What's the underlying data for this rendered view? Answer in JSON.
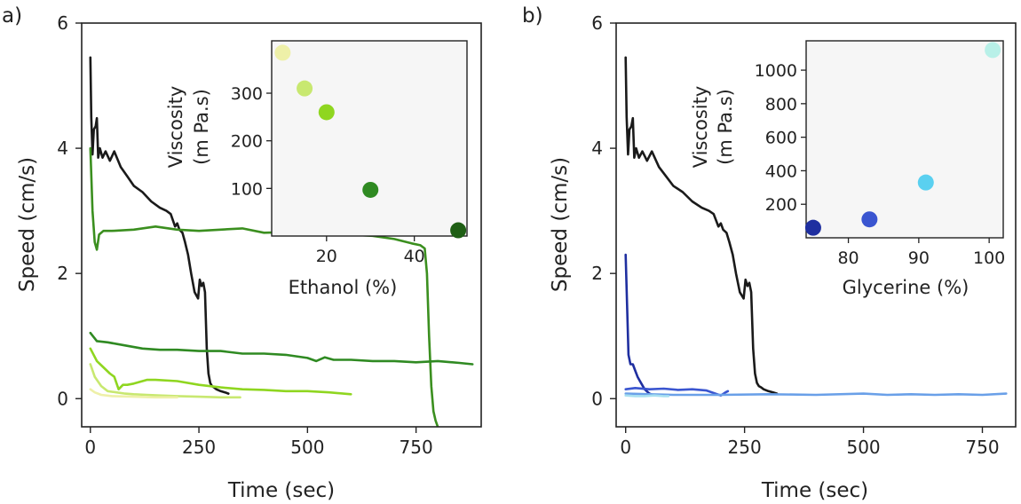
{
  "chart_data": [
    {
      "panel": "a)",
      "type": "line",
      "xlabel": "Time (sec)",
      "ylabel": "Speed (cm/s)",
      "xlim": [
        -20,
        900
      ],
      "ylim": [
        -0.45,
        6
      ],
      "xticks": [
        0,
        250,
        500,
        750
      ],
      "yticks": [
        0,
        2,
        4,
        6
      ],
      "series": [
        {
          "color": "#1a1a1a",
          "x": [
            0,
            2,
            5,
            8,
            12,
            15,
            18,
            22,
            28,
            35,
            45,
            55,
            70,
            85,
            100,
            120,
            140,
            160,
            175,
            185,
            195,
            200,
            205,
            212,
            218,
            225,
            232,
            240,
            248,
            252,
            256,
            260,
            264,
            268,
            272,
            276,
            280,
            285,
            290,
            300,
            310,
            318
          ],
          "y": [
            5.45,
            4.5,
            3.9,
            4.3,
            4.35,
            4.48,
            3.85,
            4.0,
            3.85,
            3.95,
            3.8,
            3.95,
            3.7,
            3.55,
            3.4,
            3.3,
            3.15,
            3.05,
            3.0,
            2.95,
            2.75,
            2.8,
            2.7,
            2.65,
            2.5,
            2.3,
            2.0,
            1.7,
            1.6,
            1.9,
            1.8,
            1.85,
            1.7,
            0.8,
            0.4,
            0.25,
            0.2,
            0.18,
            0.15,
            0.12,
            0.1,
            0.08
          ]
        },
        {
          "color": "#3b8f1f",
          "x": [
            0,
            5,
            10,
            15,
            20,
            30,
            50,
            100,
            150,
            200,
            250,
            300,
            350,
            400,
            450,
            500,
            550,
            600,
            650,
            700,
            740,
            760,
            770,
            775,
            780,
            785,
            790,
            795,
            800
          ],
          "y": [
            4.0,
            3.0,
            2.5,
            2.38,
            2.62,
            2.68,
            2.68,
            2.7,
            2.75,
            2.7,
            2.68,
            2.7,
            2.72,
            2.65,
            2.66,
            2.68,
            2.64,
            2.62,
            2.6,
            2.55,
            2.48,
            2.45,
            2.4,
            2.0,
            1.0,
            0.2,
            -0.2,
            -0.35,
            -0.45
          ]
        },
        {
          "color": "#2f8a22",
          "x": [
            0,
            15,
            40,
            80,
            120,
            160,
            200,
            250,
            300,
            350,
            400,
            450,
            500,
            520,
            540,
            560,
            600,
            650,
            700,
            750,
            800,
            850,
            880
          ],
          "y": [
            1.05,
            0.92,
            0.9,
            0.85,
            0.8,
            0.78,
            0.78,
            0.76,
            0.76,
            0.72,
            0.72,
            0.7,
            0.65,
            0.6,
            0.66,
            0.62,
            0.62,
            0.6,
            0.6,
            0.58,
            0.6,
            0.57,
            0.55
          ]
        },
        {
          "color": "#8fd620",
          "x": [
            0,
            15,
            30,
            45,
            55,
            65,
            75,
            85,
            100,
            130,
            150,
            200,
            250,
            300,
            350,
            400,
            450,
            500,
            550,
            600
          ],
          "y": [
            0.8,
            0.6,
            0.5,
            0.4,
            0.35,
            0.15,
            0.22,
            0.22,
            0.24,
            0.3,
            0.3,
            0.28,
            0.22,
            0.18,
            0.15,
            0.14,
            0.12,
            0.12,
            0.1,
            0.07
          ]
        },
        {
          "color": "#c8e870",
          "x": [
            0,
            10,
            25,
            40,
            60,
            80,
            100,
            130,
            160,
            200,
            250,
            300,
            345
          ],
          "y": [
            0.55,
            0.35,
            0.2,
            0.12,
            0.1,
            0.08,
            0.07,
            0.06,
            0.05,
            0.04,
            0.03,
            0.02,
            0.02
          ]
        },
        {
          "color": "#eef0a8",
          "x": [
            0,
            10,
            25,
            50,
            100,
            150,
            200
          ],
          "y": [
            0.15,
            0.1,
            0.06,
            0.04,
            0.03,
            0.02,
            0.02
          ]
        }
      ],
      "inset": {
        "xlabel": "Ethanol (%)",
        "ylabel_lines": [
          "Viscosity",
          "(m Pa.s)"
        ],
        "xlim": [
          7.5,
          52
        ],
        "ylim": [
          0,
          410
        ],
        "xticks": [
          20,
          40
        ],
        "yticks": [
          100,
          200,
          300
        ],
        "points": [
          {
            "x": 10,
            "y": 385,
            "color": "#eef0a8"
          },
          {
            "x": 15,
            "y": 310,
            "color": "#c8e870"
          },
          {
            "x": 20,
            "y": 260,
            "color": "#8fd620"
          },
          {
            "x": 30,
            "y": 97,
            "color": "#2f8a22"
          },
          {
            "x": 50,
            "y": 12,
            "color": "#1f5f15"
          }
        ]
      }
    },
    {
      "panel": "b)",
      "type": "line",
      "xlabel": "Time (sec)",
      "ylabel": "Speed (cm/s)",
      "xlim": [
        -20,
        820
      ],
      "ylim": [
        -0.45,
        6
      ],
      "xticks": [
        0,
        250,
        500,
        750
      ],
      "yticks": [
        0,
        2,
        4,
        6
      ],
      "series": [
        {
          "color": "#1a1a1a",
          "x": [
            0,
            2,
            5,
            8,
            12,
            15,
            18,
            22,
            28,
            35,
            45,
            55,
            70,
            85,
            100,
            120,
            140,
            160,
            175,
            185,
            195,
            200,
            205,
            212,
            218,
            225,
            232,
            240,
            248,
            252,
            256,
            260,
            264,
            268,
            272,
            276,
            280,
            285,
            290,
            300,
            310,
            318
          ],
          "y": [
            5.45,
            4.5,
            3.9,
            4.3,
            4.35,
            4.48,
            3.85,
            4.0,
            3.85,
            3.95,
            3.8,
            3.95,
            3.7,
            3.55,
            3.4,
            3.3,
            3.15,
            3.05,
            3.0,
            2.95,
            2.75,
            2.8,
            2.7,
            2.65,
            2.5,
            2.3,
            2.0,
            1.7,
            1.6,
            1.9,
            1.8,
            1.85,
            1.7,
            0.8,
            0.4,
            0.25,
            0.2,
            0.18,
            0.15,
            0.12,
            0.1,
            0.08
          ]
        },
        {
          "color": "#1f2fa0",
          "x": [
            0,
            3,
            6,
            10,
            15,
            20,
            25,
            30,
            40,
            50,
            60
          ],
          "y": [
            2.3,
            1.5,
            0.7,
            0.55,
            0.55,
            0.45,
            0.35,
            0.28,
            0.15,
            0.08,
            0.05
          ]
        },
        {
          "color": "#3a55d0",
          "x": [
            0,
            20,
            50,
            80,
            110,
            140,
            170,
            200,
            210,
            215
          ],
          "y": [
            0.15,
            0.17,
            0.15,
            0.16,
            0.14,
            0.15,
            0.13,
            0.05,
            0.1,
            0.12
          ]
        },
        {
          "color": "#6aa0e8",
          "x": [
            0,
            50,
            100,
            200,
            300,
            400,
            500,
            550,
            600,
            650,
            700,
            750,
            800
          ],
          "y": [
            0.08,
            0.07,
            0.06,
            0.06,
            0.07,
            0.06,
            0.08,
            0.06,
            0.07,
            0.06,
            0.07,
            0.06,
            0.08
          ]
        },
        {
          "color": "#a8e0f0",
          "x": [
            0,
            20,
            40,
            60,
            80,
            90
          ],
          "y": [
            0.05,
            0.04,
            0.04,
            0.05,
            0.04,
            0.04
          ]
        }
      ],
      "inset": {
        "xlabel": "Glycerine (%)",
        "ylabel_lines": [
          "Viscosity",
          "(m Pa.s)"
        ],
        "xlim": [
          74,
          102
        ],
        "ylim": [
          0,
          1175
        ],
        "xticks": [
          80,
          90,
          100
        ],
        "yticks": [
          200,
          400,
          600,
          800,
          1000
        ],
        "points": [
          {
            "x": 75,
            "y": 60,
            "color": "#1f2fa0"
          },
          {
            "x": 83,
            "y": 110,
            "color": "#3a55d0"
          },
          {
            "x": 91,
            "y": 330,
            "color": "#5ad0f0"
          },
          {
            "x": 100.5,
            "y": 1120,
            "color": "#b8f0e8"
          }
        ]
      }
    }
  ]
}
